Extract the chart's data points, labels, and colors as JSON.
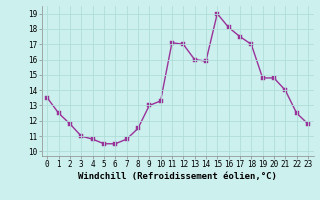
{
  "x": [
    0,
    1,
    2,
    3,
    4,
    5,
    6,
    7,
    8,
    9,
    10,
    11,
    12,
    13,
    14,
    15,
    16,
    17,
    18,
    19,
    20,
    21,
    22,
    23
  ],
  "y": [
    13.5,
    12.5,
    11.8,
    11.0,
    10.8,
    10.5,
    10.5,
    10.8,
    11.5,
    13.0,
    13.3,
    17.1,
    17.0,
    16.0,
    15.9,
    19.0,
    18.1,
    17.5,
    17.0,
    14.8,
    14.8,
    14.0,
    12.5,
    11.8
  ],
  "line_color": "#993399",
  "marker_color": "#993399",
  "background_color": "#ccf0ee",
  "grid_color": "#b0ddd8",
  "xlabel": "Windchill (Refroidissement éolien,°C)",
  "ylabel_ticks": [
    10,
    11,
    12,
    13,
    14,
    15,
    16,
    17,
    18,
    19
  ],
  "xlim": [
    -0.5,
    23.5
  ],
  "ylim": [
    9.7,
    19.5
  ],
  "xticks": [
    0,
    1,
    2,
    3,
    4,
    5,
    6,
    7,
    8,
    9,
    10,
    11,
    12,
    13,
    14,
    15,
    16,
    17,
    18,
    19,
    20,
    21,
    22,
    23
  ],
  "tick_fontsize": 5.5,
  "xlabel_fontsize": 6.5,
  "line_width": 1.0,
  "marker_size": 2.5
}
